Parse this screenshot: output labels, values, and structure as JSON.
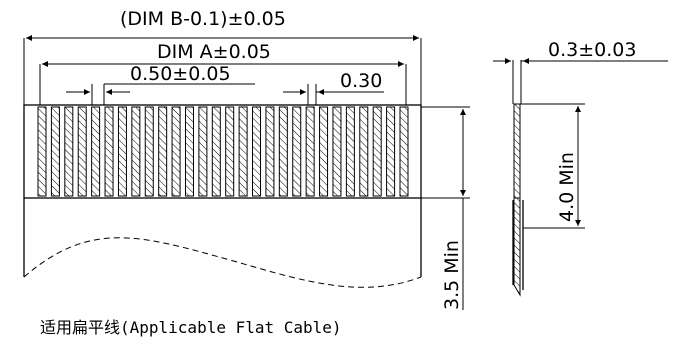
{
  "drawing": {
    "dim_b": "(DIM B-0.1)±0.05",
    "dim_a": "DIM A±0.05",
    "pitch": "0.50±0.05",
    "conductor_width": "0.30",
    "thickness": "0.3±0.03",
    "insertion_min": "4.0 Min",
    "stripped_min": "3.5 Min",
    "caption": "适用扁平线(Applicable Flat Cable)"
  },
  "conductor_count": 28
}
